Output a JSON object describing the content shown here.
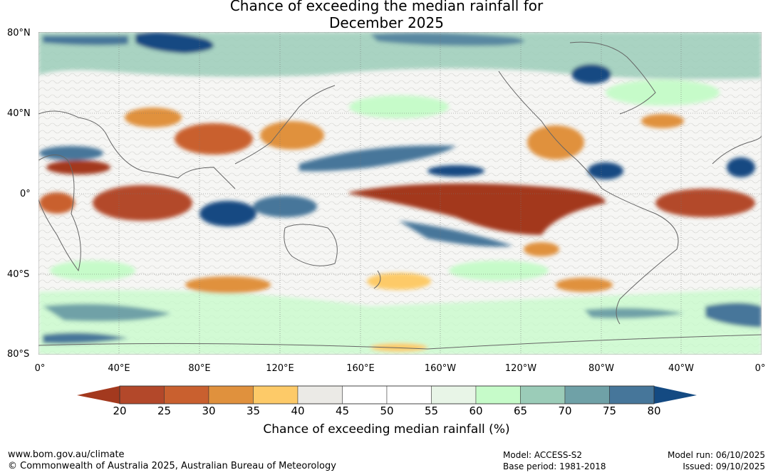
{
  "title": {
    "line1": "Chance of exceeding the median rainfall for",
    "line2": "December 2025"
  },
  "axes": {
    "lat_labels": [
      "80°N",
      "40°N",
      "0°",
      "40°S",
      "80°S"
    ],
    "lon_labels": [
      "0°",
      "40°E",
      "80°E",
      "120°E",
      "160°E",
      "160°W",
      "120°W",
      "80°W",
      "40°W",
      "0°"
    ]
  },
  "colorbar": {
    "ticks": [
      "20",
      "25",
      "30",
      "35",
      "40",
      "45",
      "50",
      "55",
      "60",
      "65",
      "70",
      "75",
      "80"
    ],
    "colors": [
      "#a3391e",
      "#b3482a",
      "#c9602f",
      "#e0913d",
      "#fdca68",
      "#ebeae6",
      "#ffffff",
      "#ffffff",
      "#e8f5e7",
      "#c6fbc9",
      "#9bccb8",
      "#6fa1a7",
      "#46769a",
      "#144a82"
    ],
    "label": "Chance of exceeding median rainfall (%)"
  },
  "footer": {
    "url": "www.bom.gov.au/climate",
    "copyright": "© Commonwealth of Australia 2025, Australian Bureau of Meteorology",
    "model": "Model: ACCESS-S2",
    "base_period": "Base period: 1981-2018",
    "model_run": "Model run: 06/10/2025",
    "issued": "Issued: 09/10/2025"
  }
}
